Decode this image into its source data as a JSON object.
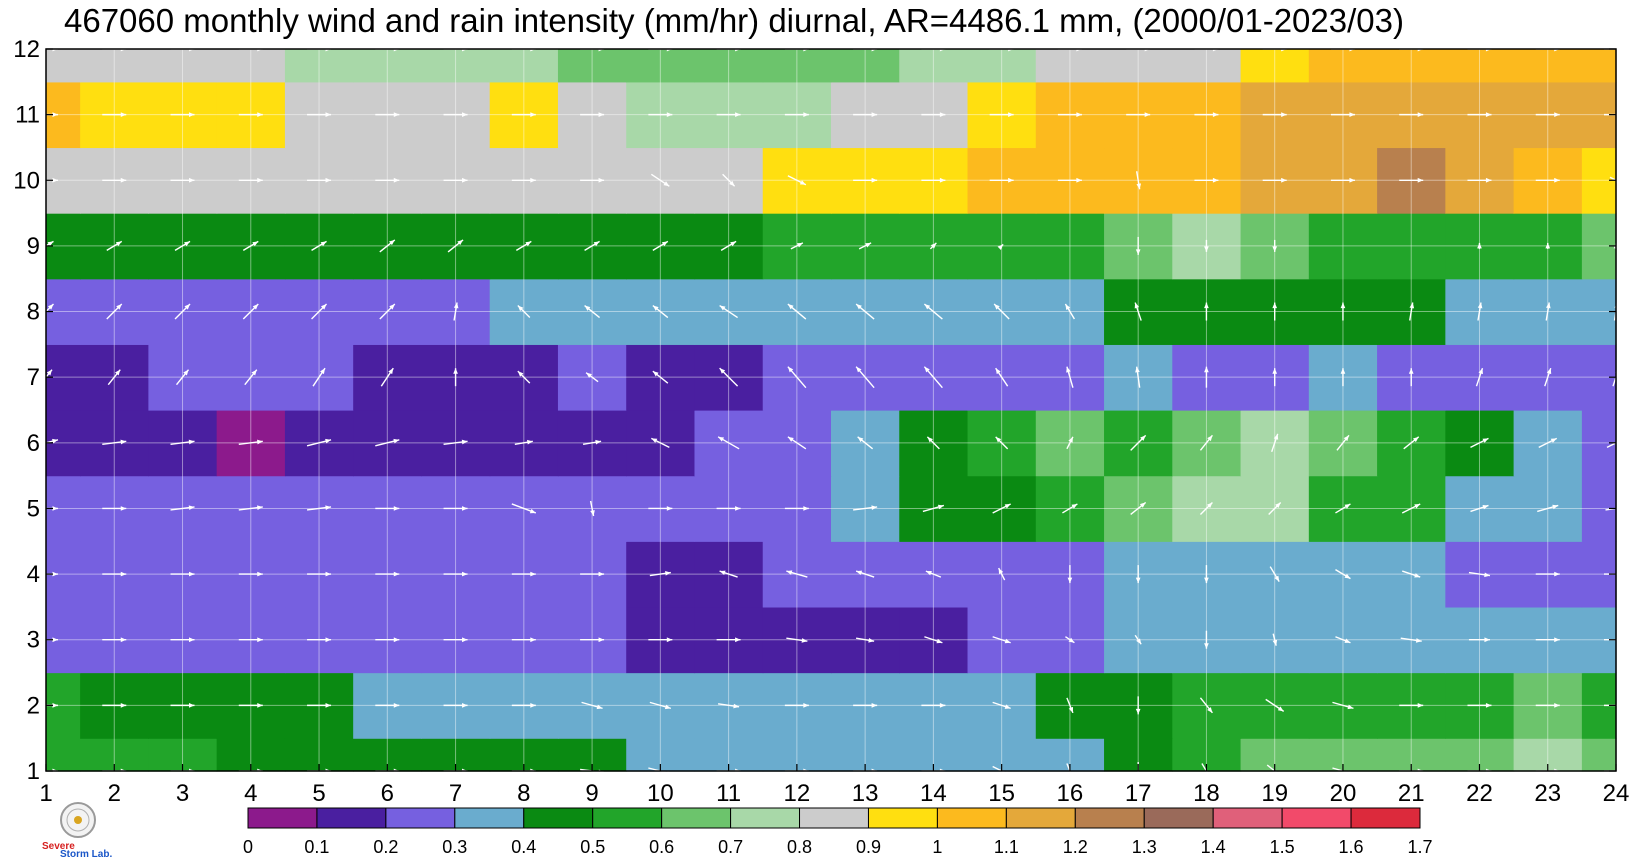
{
  "title": "467060 monthly wind and rain intensity (mm/hr) diurnal, AR=4486.1 mm, (2000/01-2023/03)",
  "logo": {
    "name": "severe-storm-lab-logo",
    "text_top": "Severe",
    "text_bottom": "Storm Lab."
  },
  "chart_data": {
    "type": "heatmap",
    "title": "467060 monthly wind and rain intensity (mm/hr) diurnal, AR=4486.1 mm, (2000/01-2023/03)",
    "xlabel": "",
    "ylabel": "",
    "x": [
      1,
      2,
      3,
      4,
      5,
      6,
      7,
      8,
      9,
      10,
      11,
      12,
      13,
      14,
      15,
      16,
      17,
      18,
      19,
      20,
      21,
      22,
      23,
      24
    ],
    "y": [
      1,
      2,
      3,
      4,
      5,
      6,
      7,
      8,
      9,
      10,
      11,
      12
    ],
    "xlim": [
      1,
      24
    ],
    "ylim": [
      1,
      12
    ],
    "xticks": [
      "1",
      "2",
      "3",
      "4",
      "5",
      "6",
      "7",
      "8",
      "9",
      "10",
      "11",
      "12",
      "13",
      "14",
      "15",
      "16",
      "17",
      "18",
      "19",
      "20",
      "21",
      "22",
      "23",
      "24"
    ],
    "yticks": [
      "1",
      "2",
      "3",
      "4",
      "5",
      "6",
      "7",
      "8",
      "9",
      "10",
      "11",
      "12"
    ],
    "grid": true,
    "rain_intensity_mm_per_hr": [
      [
        0.52,
        0.52,
        0.5,
        0.45,
        0.45,
        0.42,
        0.42,
        0.45,
        0.42,
        0.38,
        0.35,
        0.35,
        0.32,
        0.3,
        0.32,
        0.35,
        0.48,
        0.58,
        0.65,
        0.68,
        0.65,
        0.68,
        0.7,
        0.62
      ],
      [
        0.55,
        0.45,
        0.42,
        0.42,
        0.42,
        0.38,
        0.38,
        0.38,
        0.38,
        0.35,
        0.35,
        0.35,
        0.35,
        0.35,
        0.38,
        0.42,
        0.45,
        0.52,
        0.55,
        0.55,
        0.58,
        0.58,
        0.6,
        0.55
      ],
      [
        0.28,
        0.28,
        0.28,
        0.27,
        0.27,
        0.27,
        0.27,
        0.27,
        0.2,
        0.18,
        0.18,
        0.18,
        0.17,
        0.18,
        0.2,
        0.25,
        0.3,
        0.32,
        0.35,
        0.36,
        0.36,
        0.38,
        0.38,
        0.35
      ],
      [
        0.22,
        0.22,
        0.22,
        0.22,
        0.22,
        0.22,
        0.22,
        0.22,
        0.22,
        0.18,
        0.18,
        0.22,
        0.22,
        0.24,
        0.26,
        0.28,
        0.3,
        0.32,
        0.33,
        0.33,
        0.33,
        0.28,
        0.26,
        0.24
      ],
      [
        0.2,
        0.2,
        0.2,
        0.2,
        0.2,
        0.2,
        0.2,
        0.2,
        0.2,
        0.2,
        0.2,
        0.22,
        0.35,
        0.4,
        0.48,
        0.55,
        0.62,
        0.72,
        0.7,
        0.58,
        0.5,
        0.35,
        0.3,
        0.28
      ],
      [
        0.18,
        0.17,
        0.17,
        0.08,
        0.18,
        0.18,
        0.18,
        0.18,
        0.16,
        0.18,
        0.2,
        0.22,
        0.3,
        0.42,
        0.55,
        0.62,
        0.58,
        0.65,
        0.7,
        0.65,
        0.58,
        0.42,
        0.32,
        0.28
      ],
      [
        0.18,
        0.18,
        0.2,
        0.2,
        0.22,
        0.18,
        0.17,
        0.17,
        0.2,
        0.18,
        0.18,
        0.2,
        0.25,
        0.28,
        0.2,
        0.28,
        0.3,
        0.28,
        0.28,
        0.3,
        0.28,
        0.26,
        0.25,
        0.25
      ],
      [
        0.28,
        0.28,
        0.28,
        0.28,
        0.28,
        0.28,
        0.28,
        0.3,
        0.32,
        0.3,
        0.3,
        0.32,
        0.32,
        0.34,
        0.36,
        0.38,
        0.4,
        0.45,
        0.42,
        0.42,
        0.4,
        0.38,
        0.36,
        0.35
      ],
      [
        0.46,
        0.47,
        0.47,
        0.47,
        0.47,
        0.46,
        0.45,
        0.47,
        0.45,
        0.48,
        0.47,
        0.5,
        0.52,
        0.52,
        0.55,
        0.55,
        0.62,
        0.72,
        0.62,
        0.58,
        0.56,
        0.56,
        0.58,
        0.6
      ],
      [
        0.85,
        0.86,
        0.86,
        0.85,
        0.82,
        0.82,
        0.82,
        0.82,
        0.82,
        0.8,
        0.88,
        0.92,
        0.95,
        0.95,
        1.0,
        1.0,
        1.08,
        1.08,
        1.12,
        1.14,
        1.2,
        1.12,
        1.05,
        0.95
      ],
      [
        1.08,
        0.95,
        0.92,
        0.9,
        0.85,
        0.85,
        0.88,
        0.95,
        0.82,
        0.78,
        0.75,
        0.75,
        0.82,
        0.88,
        0.95,
        1.05,
        1.05,
        1.08,
        1.12,
        1.15,
        1.12,
        1.15,
        1.12,
        1.1
      ],
      [
        0.88,
        0.85,
        0.85,
        0.82,
        0.78,
        0.72,
        0.7,
        0.7,
        0.68,
        0.65,
        0.62,
        0.6,
        0.65,
        0.7,
        0.78,
        0.8,
        0.85,
        0.88,
        0.95,
        1.02,
        1.05,
        1.05,
        1.05,
        1.05
      ]
    ],
    "wind": {
      "description": "unit wind vectors (u,v) per grid cell, rows = y 1..12, columns = x 1..24",
      "u": [
        [
          0.8,
          0.8,
          0.8,
          0.8,
          0.8,
          0.8,
          0.8,
          0.8,
          0.8,
          0.8,
          0.8,
          0.8,
          0.8,
          0.8,
          0.6,
          0.2,
          0.0,
          0.3,
          0.5,
          0.7,
          0.8,
          0.8,
          0.8,
          0.8
        ],
        [
          0.8,
          0.8,
          0.8,
          0.8,
          0.8,
          0.8,
          0.8,
          0.8,
          0.7,
          0.7,
          0.7,
          0.8,
          0.8,
          0.8,
          0.6,
          0.2,
          0.0,
          0.4,
          0.6,
          0.7,
          0.8,
          0.8,
          0.8,
          0.8
        ],
        [
          0.8,
          0.8,
          0.8,
          0.8,
          0.8,
          0.8,
          0.8,
          0.8,
          0.8,
          0.8,
          0.8,
          0.7,
          0.6,
          0.6,
          0.6,
          0.3,
          0.2,
          0.0,
          0.1,
          0.5,
          0.7,
          0.7,
          0.8,
          0.8
        ],
        [
          0.8,
          0.8,
          0.8,
          0.8,
          0.8,
          0.8,
          0.8,
          0.8,
          0.8,
          0.7,
          -0.6,
          -0.7,
          -0.6,
          -0.5,
          -0.2,
          0.0,
          0.0,
          0.0,
          0.3,
          0.5,
          0.6,
          0.7,
          0.8,
          0.8
        ],
        [
          0.8,
          0.8,
          0.8,
          0.8,
          0.8,
          0.8,
          0.8,
          0.8,
          0.1,
          0.8,
          0.8,
          0.8,
          0.8,
          0.7,
          0.6,
          0.5,
          0.5,
          0.4,
          0.4,
          0.5,
          0.6,
          0.6,
          0.7,
          0.7
        ],
        [
          0.8,
          0.8,
          0.8,
          0.8,
          0.8,
          0.8,
          0.8,
          0.6,
          0.6,
          -0.6,
          -0.7,
          -0.6,
          -0.5,
          -0.4,
          -0.4,
          0.2,
          0.5,
          0.4,
          0.2,
          0.4,
          0.5,
          0.6,
          0.6,
          0.6
        ],
        [
          0.4,
          0.4,
          0.4,
          0.4,
          0.4,
          0.4,
          0.0,
          -0.4,
          -0.4,
          -0.5,
          -0.6,
          -0.6,
          -0.6,
          -0.6,
          -0.4,
          -0.2,
          -0.1,
          0.0,
          0.0,
          0.0,
          0.0,
          0.2,
          0.2,
          0.2
        ],
        [
          0.5,
          0.5,
          0.5,
          0.5,
          0.5,
          0.5,
          0.1,
          -0.4,
          -0.5,
          -0.5,
          -0.6,
          -0.6,
          -0.6,
          -0.6,
          -0.5,
          -0.3,
          -0.2,
          0.0,
          0.0,
          0.0,
          0.1,
          0.1,
          0.1,
          0.1
        ],
        [
          0.5,
          0.5,
          0.5,
          0.5,
          0.5,
          0.5,
          0.5,
          0.5,
          0.5,
          0.5,
          0.5,
          0.4,
          0.4,
          0.2,
          0.1,
          0.0,
          0.0,
          0.0,
          0.0,
          0.0,
          0.0,
          0.0,
          0.0,
          0.0
        ],
        [
          0.8,
          0.8,
          0.8,
          0.8,
          0.8,
          0.8,
          0.8,
          0.8,
          0.8,
          0.6,
          0.4,
          0.6,
          0.8,
          0.8,
          0.8,
          0.8,
          0.1,
          0.8,
          0.8,
          0.8,
          0.8,
          0.8,
          0.8,
          0.4
        ],
        [
          0.8,
          0.8,
          0.8,
          0.8,
          0.8,
          0.8,
          0.8,
          0.8,
          0.8,
          0.8,
          0.8,
          0.8,
          0.8,
          0.8,
          0.8,
          0.8,
          0.8,
          0.8,
          0.8,
          0.8,
          0.8,
          0.8,
          0.8,
          0.8
        ],
        [
          0.8,
          0.8,
          0.8,
          0.8,
          0.8,
          0.8,
          0.8,
          0.8,
          0.8,
          0.8,
          0.8,
          0.8,
          0.8,
          0.8,
          0.8,
          0.8,
          0.8,
          0.8,
          0.8,
          0.8,
          0.8,
          0.8,
          0.8,
          0.8
        ]
      ],
      "v": [
        [
          0.0,
          0.0,
          0.0,
          0.0,
          0.0,
          0.0,
          0.0,
          0.0,
          -0.1,
          -0.2,
          0.0,
          0.0,
          0.0,
          0.0,
          -0.3,
          -0.5,
          -0.6,
          -0.5,
          -0.4,
          -0.2,
          0.0,
          0.0,
          0.0,
          0.0
        ],
        [
          0.0,
          0.0,
          0.0,
          0.0,
          0.0,
          0.0,
          0.0,
          0.0,
          -0.2,
          -0.2,
          -0.1,
          0.0,
          0.0,
          0.0,
          -0.2,
          -0.5,
          -0.6,
          -0.5,
          -0.4,
          -0.2,
          0.0,
          0.0,
          0.0,
          0.0
        ],
        [
          0.0,
          0.0,
          0.0,
          0.0,
          0.0,
          0.0,
          0.0,
          0.0,
          0.0,
          0.0,
          0.0,
          -0.1,
          -0.1,
          -0.2,
          -0.2,
          -0.2,
          -0.3,
          -0.6,
          -0.4,
          -0.2,
          -0.1,
          0.0,
          0.0,
          0.0
        ],
        [
          0.0,
          0.0,
          0.0,
          0.0,
          0.0,
          0.0,
          0.0,
          0.0,
          0.0,
          0.1,
          0.2,
          0.2,
          0.2,
          0.2,
          0.4,
          -0.6,
          -0.6,
          -0.6,
          -0.5,
          -0.3,
          -0.2,
          -0.1,
          0.0,
          0.0
        ],
        [
          0.0,
          0.0,
          0.1,
          0.1,
          0.1,
          0.0,
          0.0,
          -0.3,
          -0.5,
          0.0,
          0.0,
          0.0,
          0.1,
          0.2,
          0.3,
          0.3,
          0.4,
          0.4,
          0.4,
          0.3,
          0.3,
          0.2,
          0.2,
          0.1
        ],
        [
          0.2,
          0.1,
          0.1,
          0.1,
          0.2,
          0.2,
          0.1,
          0.1,
          0.1,
          0.3,
          0.4,
          0.4,
          0.4,
          0.4,
          0.4,
          0.4,
          0.5,
          0.5,
          0.6,
          0.5,
          0.4,
          0.3,
          0.3,
          0.3
        ],
        [
          0.5,
          0.5,
          0.5,
          0.5,
          0.6,
          0.6,
          0.6,
          0.4,
          0.3,
          0.4,
          0.6,
          0.7,
          0.7,
          0.7,
          0.6,
          0.7,
          0.7,
          0.7,
          0.6,
          0.6,
          0.6,
          0.6,
          0.6,
          0.6
        ],
        [
          0.5,
          0.5,
          0.5,
          0.5,
          0.5,
          0.5,
          0.6,
          0.4,
          0.4,
          0.4,
          0.4,
          0.5,
          0.5,
          0.5,
          0.5,
          0.5,
          0.6,
          0.6,
          0.6,
          0.6,
          0.6,
          0.6,
          0.6,
          0.6
        ],
        [
          0.3,
          0.3,
          0.3,
          0.3,
          0.3,
          0.4,
          0.4,
          0.3,
          0.3,
          0.3,
          0.3,
          0.2,
          0.2,
          0.2,
          0.1,
          0.0,
          -0.6,
          -0.4,
          -0.4,
          0.0,
          0.0,
          0.2,
          0.2,
          0.2
        ],
        [
          0.0,
          0.0,
          0.0,
          0.0,
          0.0,
          0.0,
          0.0,
          0.0,
          0.0,
          -0.4,
          -0.4,
          -0.3,
          0.0,
          0.0,
          0.0,
          0.0,
          -0.6,
          0.0,
          0.0,
          0.0,
          0.0,
          0.0,
          0.0,
          -0.2
        ],
        [
          0.0,
          0.0,
          0.0,
          0.0,
          0.0,
          0.0,
          0.0,
          0.0,
          0.0,
          0.0,
          0.0,
          0.0,
          0.0,
          0.0,
          0.0,
          0.0,
          0.0,
          0.0,
          0.0,
          0.0,
          0.0,
          0.0,
          0.0,
          0.0
        ],
        [
          0.0,
          0.0,
          0.0,
          0.0,
          0.0,
          0.0,
          0.0,
          0.0,
          0.0,
          0.0,
          0.0,
          0.0,
          0.0,
          0.0,
          0.0,
          0.0,
          0.0,
          0.0,
          0.0,
          0.0,
          0.0,
          0.0,
          0.0,
          0.0
        ]
      ]
    },
    "colorbar": {
      "levels": [
        0,
        0.1,
        0.2,
        0.3,
        0.4,
        0.5,
        0.6,
        0.7,
        0.8,
        0.9,
        1,
        1.1,
        1.2,
        1.3,
        1.4,
        1.5,
        1.6,
        1.7
      ],
      "labels": [
        "0",
        "0.1",
        "0.2",
        "0.3",
        "0.4",
        "0.5",
        "0.6",
        "0.7",
        "0.8",
        "0.9",
        "1",
        "1.1",
        "1.2",
        "1.3",
        "1.4",
        "1.5",
        "1.6",
        "1.7"
      ],
      "colors": [
        "#8c1a8c",
        "#4a1fa0",
        "#7660e0",
        "#6aacce",
        "#0a8a12",
        "#22a52a",
        "#6cc46c",
        "#a8d8a8",
        "#cccccc",
        "#ffdf10",
        "#fcba1e",
        "#e4a83a",
        "#b8804e",
        "#9a6a5a",
        "#e0607a",
        "#f24a6a",
        "#dc2a3c"
      ]
    },
    "contour_line_color": "#f5a623",
    "vector_color": "#ffffff"
  }
}
